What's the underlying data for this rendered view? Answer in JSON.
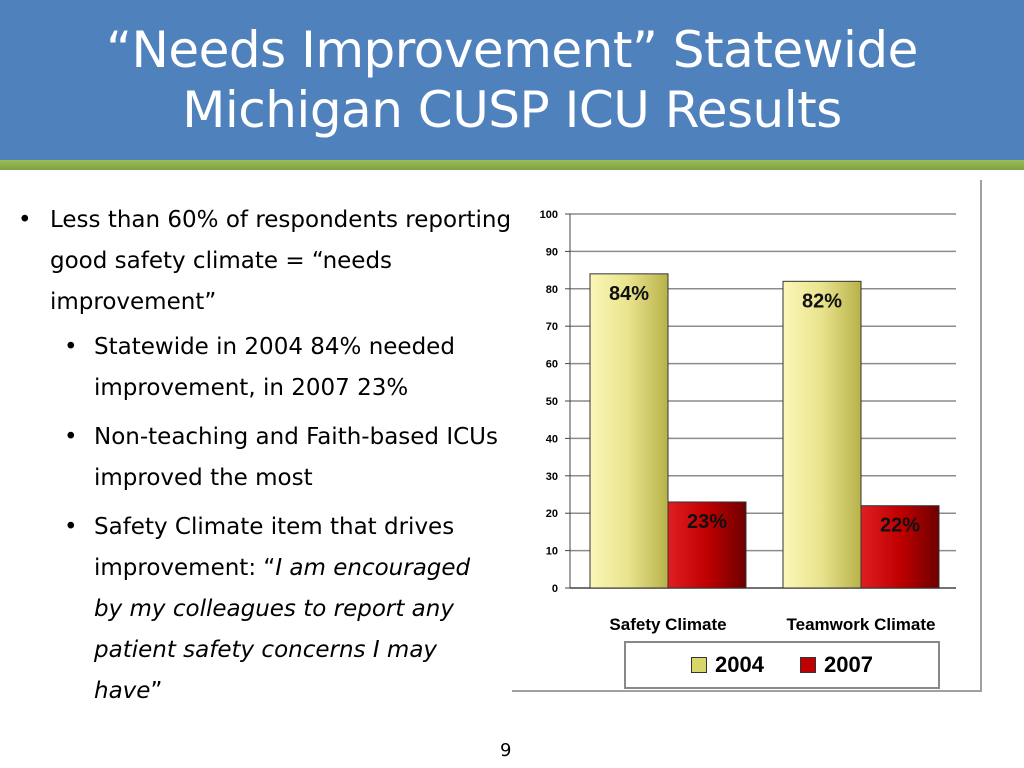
{
  "slide": {
    "title_line1": "“Needs Improvement” Statewide",
    "title_line2": "Michigan CUSP ICU Results",
    "page_number": "9"
  },
  "bullets": {
    "main": "Less than 60% of respondents reporting good safety climate = “needs improvement”",
    "sub1": "Statewide in 2004 84% needed improvement, in 2007 23%",
    "sub2": "Non-teaching and Faith-based ICUs improved the most",
    "sub3_prefix": "Safety Climate item that drives improvement: “",
    "sub3_quote": "I am encouraged by my colleagues to report any patient safety concerns I may have",
    "sub3_suffix": "”"
  },
  "chart_data": {
    "type": "bar",
    "categories": [
      "Safety Climate",
      "Teamwork Climate"
    ],
    "series": [
      {
        "name": "2004",
        "values": [
          84,
          82
        ],
        "labels": [
          "84%",
          "82%"
        ],
        "color": "#d9d56a"
      },
      {
        "name": "2007",
        "values": [
          23,
          22
        ],
        "labels": [
          "23%",
          "22%"
        ],
        "color": "#c00000"
      }
    ],
    "ylim": [
      0,
      100
    ],
    "yticks": [
      0,
      10,
      20,
      30,
      40,
      50,
      60,
      70,
      80,
      90,
      100
    ],
    "grid": true,
    "legend": "bottom"
  }
}
